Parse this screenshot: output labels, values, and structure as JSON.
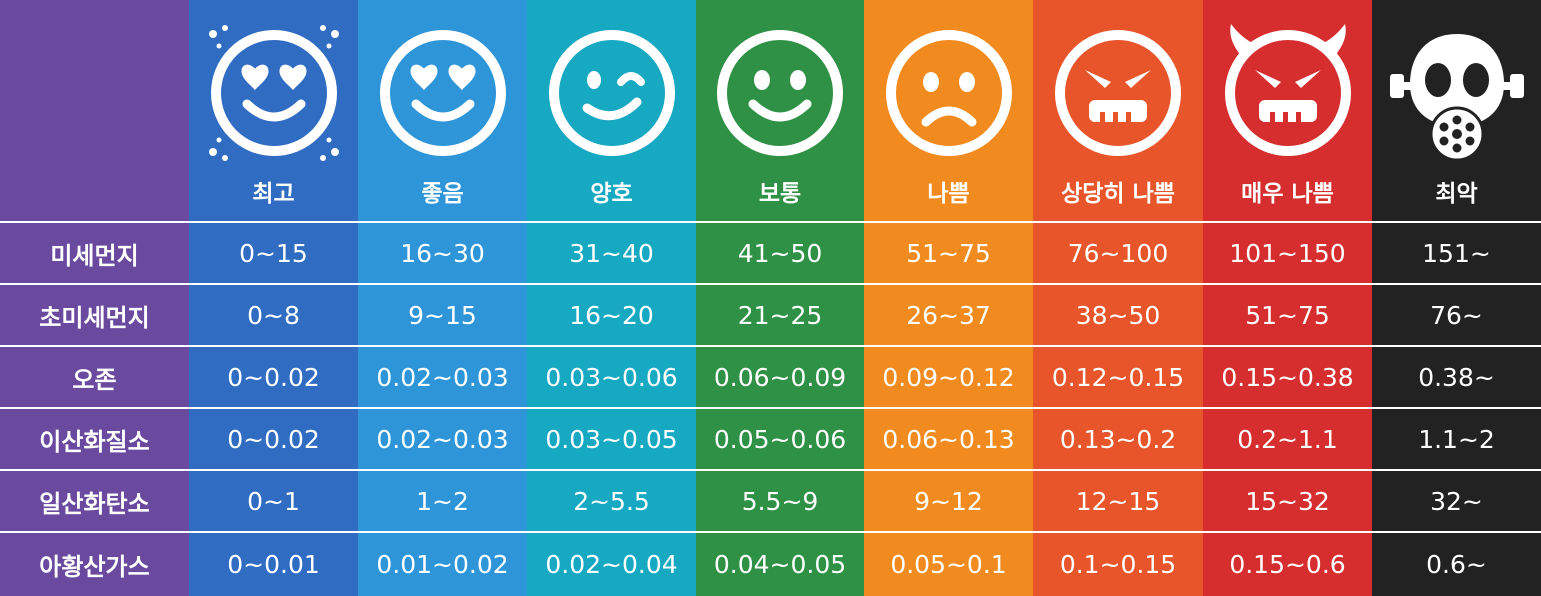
{
  "levels": [
    {
      "label": "최고",
      "color": "#2f6cc2",
      "icon": "heart-eyes-sparkle-icon"
    },
    {
      "label": "좋음",
      "color": "#2e96d8",
      "icon": "heart-eyes-icon"
    },
    {
      "label": "양호",
      "color": "#17a8c2",
      "icon": "wink-face-icon"
    },
    {
      "label": "보통",
      "color": "#2f9145",
      "icon": "smile-face-icon"
    },
    {
      "label": "나쁨",
      "color": "#f28b1f",
      "icon": "sad-face-icon"
    },
    {
      "label": "상당히 나쁨",
      "color": "#e8552a",
      "icon": "angry-face-icon"
    },
    {
      "label": "매우 나쁨",
      "color": "#d62e2e",
      "icon": "devil-face-icon"
    },
    {
      "label": "최악",
      "color": "#222222",
      "icon": "gas-mask-icon"
    }
  ],
  "pollutants": [
    {
      "name": "미세먼지",
      "values": [
        "0~15",
        "16~30",
        "31~40",
        "41~50",
        "51~75",
        "76~100",
        "101~150",
        "151~"
      ]
    },
    {
      "name": "초미세먼지",
      "values": [
        "0~8",
        "9~15",
        "16~20",
        "21~25",
        "26~37",
        "38~50",
        "51~75",
        "76~"
      ]
    },
    {
      "name": "오존",
      "values": [
        "0~0.02",
        "0.02~0.03",
        "0.03~0.06",
        "0.06~0.09",
        "0.09~0.12",
        "0.12~0.15",
        "0.15~0.38",
        "0.38~"
      ]
    },
    {
      "name": "이산화질소",
      "values": [
        "0~0.02",
        "0.02~0.03",
        "0.03~0.05",
        "0.05~0.06",
        "0.06~0.13",
        "0.13~0.2",
        "0.2~1.1",
        "1.1~2"
      ]
    },
    {
      "name": "일산화탄소",
      "values": [
        "0~1",
        "1~2",
        "2~5.5",
        "5.5~9",
        "9~12",
        "12~15",
        "15~32",
        "32~"
      ]
    },
    {
      "name": "아황산가스",
      "values": [
        "0~0.01",
        "0.01~0.02",
        "0.02~0.04",
        "0.04~0.05",
        "0.05~0.1",
        "0.1~0.15",
        "0.15~0.6",
        "0.6~"
      ]
    }
  ],
  "colors": {
    "row_header": "#6a4a9f",
    "separator": "#ffffff"
  }
}
